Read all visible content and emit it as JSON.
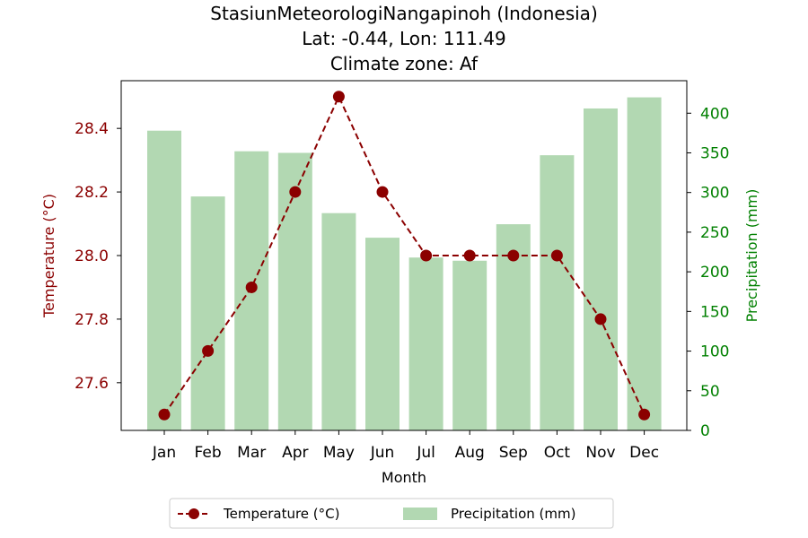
{
  "chart_data": {
    "type": "bar+line",
    "title_lines": [
      "StasiunMeteorologiNangapinoh (Indonesia)",
      "Lat: -0.44, Lon: 111.49",
      "Climate zone: Af"
    ],
    "xlabel": "Month",
    "ylabel_left": "Temperature (°C)",
    "ylabel_right": "Precipitation (mm)",
    "categories": [
      "Jan",
      "Feb",
      "Mar",
      "Apr",
      "May",
      "Jun",
      "Jul",
      "Aug",
      "Sep",
      "Oct",
      "Nov",
      "Dec"
    ],
    "series": [
      {
        "name": "Temperature (°C)",
        "kind": "line",
        "axis": "left",
        "color": "#8b0000",
        "style": "dashed",
        "marker": "circle",
        "values": [
          27.5,
          27.7,
          27.9,
          28.2,
          28.5,
          28.2,
          28.0,
          28.0,
          28.0,
          28.0,
          27.8,
          27.5
        ]
      },
      {
        "name": "Precipitation (mm)",
        "kind": "bar",
        "axis": "right",
        "color": "#b2d8b2",
        "values": [
          378,
          295,
          352,
          350,
          274,
          243,
          218,
          214,
          260,
          347,
          406,
          420
        ]
      }
    ],
    "ylim_left": [
      27.45,
      28.55
    ],
    "ylim_right": [
      0,
      441
    ],
    "yticks_left": [
      "27.6",
      "27.8",
      "28.0",
      "28.2",
      "28.4"
    ],
    "yticks_right": [
      "0",
      "50",
      "100",
      "150",
      "200",
      "250",
      "300",
      "350",
      "400"
    ],
    "left_axis_color": "#8b0000",
    "right_axis_color": "#008000",
    "legend_position": "bottom-center",
    "grid": false
  }
}
